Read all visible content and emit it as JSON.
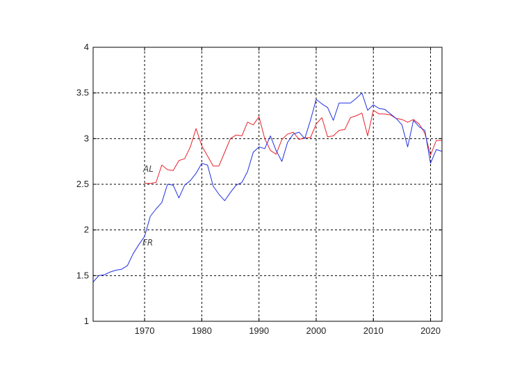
{
  "chart_data": {
    "type": "line",
    "title": "",
    "xlabel": "",
    "ylabel": "",
    "xlim": [
      1961,
      2022
    ],
    "ylim": [
      1,
      4
    ],
    "x_ticks": [
      1970,
      1980,
      1990,
      2000,
      2010,
      2020
    ],
    "y_ticks": [
      1,
      1.5,
      2,
      2.5,
      3,
      3.5,
      4
    ],
    "x_tick_labels": [
      "1970",
      "1980",
      "1990",
      "2000",
      "2010",
      "2020"
    ],
    "y_tick_labels": [
      "1",
      "1.5",
      "2",
      "2.5",
      "3",
      "3.5",
      "4"
    ],
    "grid": true,
    "series": [
      {
        "name": "AL",
        "color": "#e8202a",
        "x": [
          1970,
          1971,
          1972,
          1973,
          1974,
          1975,
          1976,
          1977,
          1978,
          1979,
          1980,
          1981,
          1982,
          1983,
          1984,
          1985,
          1986,
          1987,
          1988,
          1989,
          1990,
          1991,
          1992,
          1993,
          1994,
          1995,
          1996,
          1997,
          1998,
          1999,
          2000,
          2001,
          2002,
          2003,
          2004,
          2005,
          2006,
          2007,
          2008,
          2009,
          2010,
          2011,
          2012,
          2013,
          2014,
          2015,
          2016,
          2017,
          2018,
          2019,
          2020,
          2021,
          2022
        ],
        "values": [
          2.51,
          2.51,
          2.52,
          2.71,
          2.66,
          2.65,
          2.76,
          2.78,
          2.91,
          3.11,
          2.92,
          2.81,
          2.7,
          2.7,
          2.85,
          3.0,
          3.04,
          3.03,
          3.18,
          3.15,
          3.24,
          3.0,
          2.87,
          2.83,
          2.99,
          3.05,
          3.07,
          2.99,
          3.01,
          3.01,
          3.16,
          3.23,
          3.02,
          3.03,
          3.09,
          3.1,
          3.23,
          3.25,
          3.28,
          3.03,
          3.31,
          3.27,
          3.27,
          3.26,
          3.22,
          3.21,
          3.18,
          3.21,
          3.16,
          3.06,
          2.82,
          2.98,
          2.98
        ]
      },
      {
        "name": "FR",
        "color": "#1f2fe0",
        "x": [
          1961,
          1962,
          1963,
          1964,
          1965,
          1966,
          1967,
          1968,
          1969,
          1970,
          1971,
          1972,
          1973,
          1974,
          1975,
          1976,
          1977,
          1978,
          1979,
          1980,
          1981,
          1982,
          1983,
          1984,
          1985,
          1986,
          1987,
          1988,
          1989,
          1990,
          1991,
          1992,
          1993,
          1994,
          1995,
          1996,
          1997,
          1998,
          1999,
          2000,
          2001,
          2002,
          2003,
          2004,
          2005,
          2006,
          2007,
          2008,
          2009,
          2010,
          2011,
          2012,
          2013,
          2014,
          2015,
          2016,
          2017,
          2018,
          2019,
          2020,
          2021,
          2022
        ],
        "values": [
          1.43,
          1.5,
          1.51,
          1.54,
          1.56,
          1.57,
          1.61,
          1.74,
          1.84,
          1.93,
          2.15,
          2.23,
          2.3,
          2.5,
          2.49,
          2.35,
          2.49,
          2.54,
          2.62,
          2.73,
          2.71,
          2.48,
          2.39,
          2.32,
          2.41,
          2.49,
          2.52,
          2.64,
          2.85,
          2.91,
          2.89,
          3.03,
          2.87,
          2.75,
          2.96,
          3.05,
          3.07,
          3.0,
          3.2,
          3.43,
          3.38,
          3.34,
          3.2,
          3.39,
          3.39,
          3.39,
          3.44,
          3.5,
          3.31,
          3.37,
          3.33,
          3.32,
          3.27,
          3.22,
          3.15,
          2.91,
          3.2,
          3.13,
          3.09,
          2.73,
          2.88,
          2.86
        ]
      }
    ]
  },
  "labels": {
    "al": "AL",
    "fr": "FR"
  }
}
